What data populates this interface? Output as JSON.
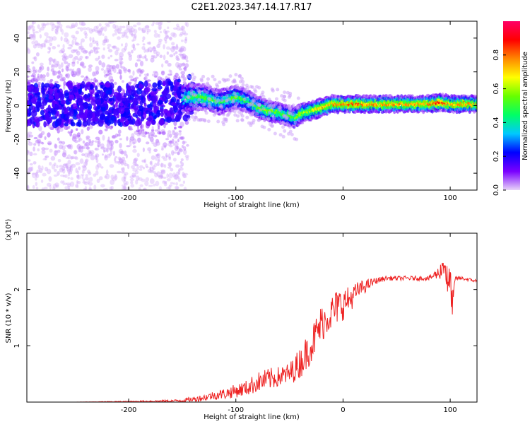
{
  "title": "C2E1.2023.347.14.17.R17",
  "chart_data": [
    {
      "type": "heatmap",
      "xlabel": "Height of straight line (km)",
      "ylabel": "Frequency (Hz)",
      "xlim": [
        -295,
        125
      ],
      "ylim": [
        -50,
        50
      ],
      "xticks": [
        -200,
        -100,
        0,
        100
      ],
      "xtick_labels": [
        "-200",
        "-100",
        "0",
        "100"
      ],
      "yticks": [
        -40,
        -20,
        0,
        20,
        40
      ],
      "ytick_labels": [
        "-40",
        "-20",
        "0",
        "20",
        "40"
      ],
      "colorbar": {
        "label": "Normalized spectral amplitude",
        "range": [
          0,
          1
        ],
        "ticks": [
          0.0,
          0.2,
          0.4,
          0.6,
          0.8
        ],
        "tick_labels": [
          "0.0",
          "0.2",
          "0.4",
          "0.6",
          "0.8"
        ],
        "colormap": [
          "#e8d4f8",
          "#7a00ff",
          "#0000ff",
          "#00c8ff",
          "#00ff66",
          "#66ff00",
          "#ffff00",
          "#ff8800",
          "#ff0000",
          "#ff0066"
        ]
      },
      "ridge": {
        "x": [
          -290,
          -250,
          -200,
          -160,
          -145,
          -130,
          -115,
          -100,
          -90,
          -80,
          -70,
          -60,
          -50,
          -45,
          -40,
          -35,
          -30,
          -20,
          -10,
          0,
          10,
          20,
          40,
          60,
          80,
          90,
          100,
          110,
          125
        ],
        "y": [
          0,
          1,
          1,
          2,
          5,
          5,
          2,
          5,
          3,
          -1,
          -3,
          -4,
          -6,
          -7,
          -5,
          -4,
          -3,
          -1,
          1,
          1,
          1,
          1,
          1,
          1,
          1,
          2,
          1,
          1,
          1
        ],
        "amplitude": [
          0.18,
          0.2,
          0.2,
          0.22,
          0.45,
          0.5,
          0.45,
          0.5,
          0.45,
          0.5,
          0.55,
          0.5,
          0.5,
          0.55,
          0.55,
          0.6,
          0.6,
          0.7,
          0.75,
          0.8,
          0.8,
          0.75,
          0.75,
          0.75,
          0.75,
          0.9,
          0.7,
          0.8,
          0.7
        ]
      }
    },
    {
      "type": "line",
      "xlabel": "Height of straight line (km)",
      "ylabel": "SNR (10 * v/v)",
      "y_multiplier": "(x10⁴)",
      "xlim": [
        -295,
        125
      ],
      "ylim": [
        0,
        3
      ],
      "xticks": [
        -200,
        -100,
        0,
        100
      ],
      "xtick_labels": [
        "-200",
        "-100",
        "0",
        "100"
      ],
      "yticks": [
        1,
        2,
        3
      ],
      "ytick_labels": [
        "1",
        "2",
        "3"
      ],
      "series": [
        {
          "color": "#ee2222",
          "x": [
            -295,
            -250,
            -200,
            -160,
            -150,
            -140,
            -130,
            -120,
            -110,
            -100,
            -90,
            -80,
            -70,
            -60,
            -50,
            -40,
            -30,
            -25,
            -20,
            -15,
            -10,
            -5,
            0,
            5,
            10,
            15,
            20,
            30,
            40,
            60,
            80,
            90,
            95,
            98,
            100,
            102,
            105,
            110,
            125
          ],
          "y": [
            0.0,
            0.0,
            0.01,
            0.02,
            0.03,
            0.05,
            0.08,
            0.12,
            0.15,
            0.2,
            0.25,
            0.35,
            0.4,
            0.45,
            0.5,
            0.7,
            1.0,
            1.2,
            1.4,
            1.5,
            1.6,
            1.7,
            1.75,
            1.8,
            1.9,
            2.0,
            2.05,
            2.15,
            2.2,
            2.2,
            2.2,
            2.3,
            2.5,
            2.0,
            2.2,
            1.7,
            2.2,
            2.2,
            2.15
          ],
          "jitter": [
            0.0,
            0.0,
            0.01,
            0.02,
            0.03,
            0.05,
            0.06,
            0.08,
            0.1,
            0.12,
            0.14,
            0.18,
            0.2,
            0.18,
            0.2,
            0.28,
            0.32,
            0.35,
            0.35,
            0.3,
            0.32,
            0.32,
            0.3,
            0.25,
            0.2,
            0.15,
            0.12,
            0.06,
            0.04,
            0.04,
            0.04,
            0.12,
            0.3,
            0.3,
            0.3,
            0.25,
            0.05,
            0.03,
            0.03
          ]
        }
      ]
    }
  ]
}
